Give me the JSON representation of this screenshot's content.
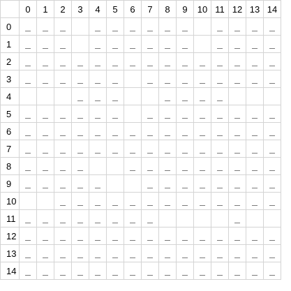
{
  "columns": [
    "0",
    "1",
    "2",
    "3",
    "4",
    "5",
    "6",
    "7",
    "8",
    "9",
    "10",
    "11",
    "12",
    "13",
    "14"
  ],
  "rows": [
    "0",
    "1",
    "2",
    "3",
    "4",
    "5",
    "6",
    "7",
    "8",
    "9",
    "10",
    "11",
    "12",
    "13",
    "14"
  ],
  "mark_glyph": "_",
  "grid": [
    [
      1,
      1,
      1,
      0,
      1,
      1,
      1,
      1,
      1,
      1,
      0,
      1,
      1,
      1,
      1
    ],
    [
      1,
      1,
      1,
      0,
      1,
      1,
      1,
      1,
      1,
      1,
      0,
      1,
      1,
      1,
      1
    ],
    [
      1,
      1,
      1,
      1,
      1,
      1,
      1,
      1,
      1,
      1,
      1,
      1,
      1,
      1,
      1
    ],
    [
      1,
      1,
      1,
      1,
      1,
      1,
      0,
      1,
      1,
      1,
      1,
      1,
      1,
      1,
      1
    ],
    [
      0,
      0,
      0,
      1,
      1,
      1,
      0,
      0,
      1,
      1,
      1,
      1,
      0,
      0,
      0
    ],
    [
      1,
      1,
      1,
      1,
      1,
      1,
      0,
      1,
      1,
      1,
      1,
      1,
      1,
      1,
      1
    ],
    [
      1,
      1,
      1,
      1,
      1,
      1,
      1,
      1,
      1,
      1,
      1,
      1,
      1,
      1,
      1
    ],
    [
      1,
      1,
      1,
      1,
      1,
      1,
      1,
      1,
      1,
      1,
      1,
      1,
      1,
      1,
      1
    ],
    [
      1,
      1,
      1,
      1,
      0,
      0,
      1,
      1,
      1,
      1,
      1,
      1,
      1,
      1,
      1
    ],
    [
      1,
      1,
      1,
      1,
      1,
      0,
      0,
      1,
      1,
      1,
      1,
      1,
      1,
      1,
      1
    ],
    [
      0,
      0,
      1,
      1,
      1,
      1,
      1,
      1,
      1,
      1,
      1,
      1,
      1,
      1,
      1
    ],
    [
      1,
      1,
      1,
      1,
      1,
      1,
      1,
      1,
      0,
      0,
      0,
      0,
      1,
      0,
      0
    ],
    [
      1,
      1,
      1,
      1,
      1,
      1,
      1,
      1,
      1,
      1,
      1,
      1,
      1,
      1,
      1
    ],
    [
      1,
      1,
      1,
      1,
      1,
      1,
      1,
      1,
      1,
      1,
      1,
      1,
      1,
      1,
      1
    ],
    [
      1,
      1,
      1,
      1,
      1,
      1,
      1,
      1,
      1,
      1,
      1,
      1,
      1,
      1,
      1
    ]
  ]
}
